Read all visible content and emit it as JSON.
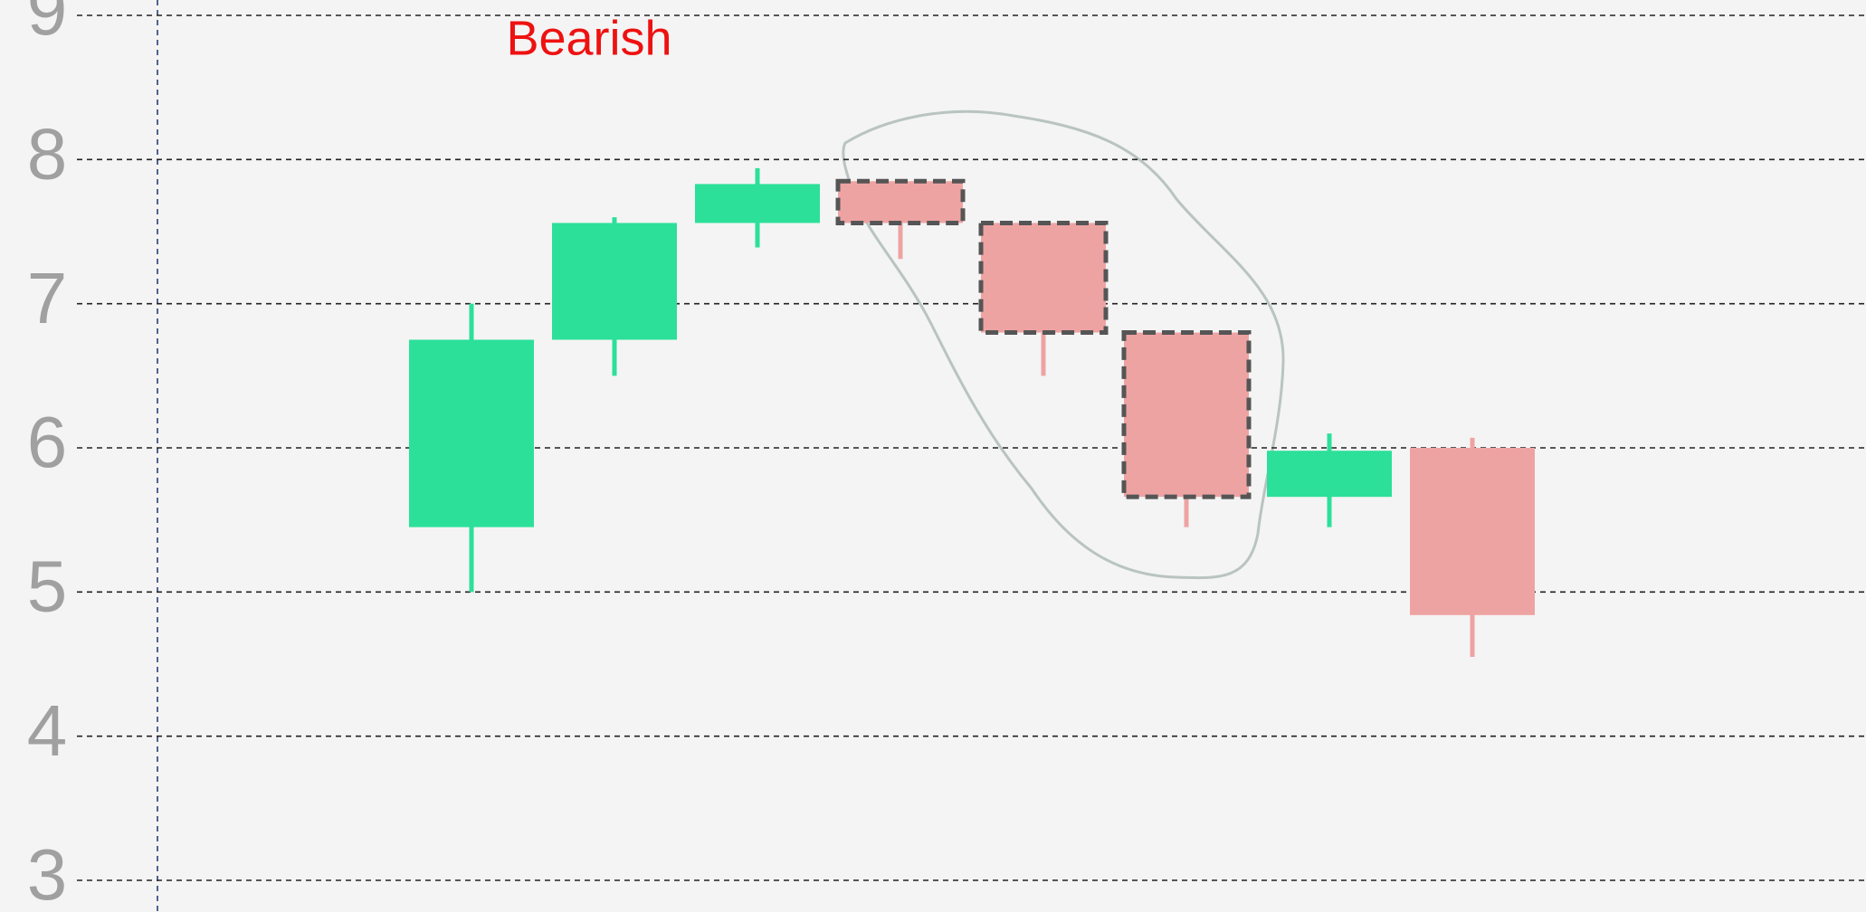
{
  "chart_data": {
    "type": "candlestick",
    "title": "Bearish",
    "open": [
      5.45,
      6.75,
      7.56,
      7.85,
      7.56,
      6.8,
      5.66,
      6.0
    ],
    "high": [
      7.0,
      7.6,
      7.94,
      7.85,
      7.56,
      6.8,
      6.1,
      6.07
    ],
    "low": [
      5.0,
      6.5,
      7.39,
      7.31,
      6.5,
      5.45,
      5.45,
      4.55
    ],
    "close": [
      6.75,
      7.56,
      7.83,
      7.56,
      6.8,
      5.66,
      5.98,
      4.84
    ],
    "up_color": "#2ce09a",
    "down_color": "#eea3a3",
    "dashed_outline": [
      3,
      4,
      5
    ],
    "ylim": [
      3,
      9
    ],
    "yticks": [
      3,
      4,
      5,
      6,
      7,
      8,
      9
    ],
    "grid": true
  }
}
